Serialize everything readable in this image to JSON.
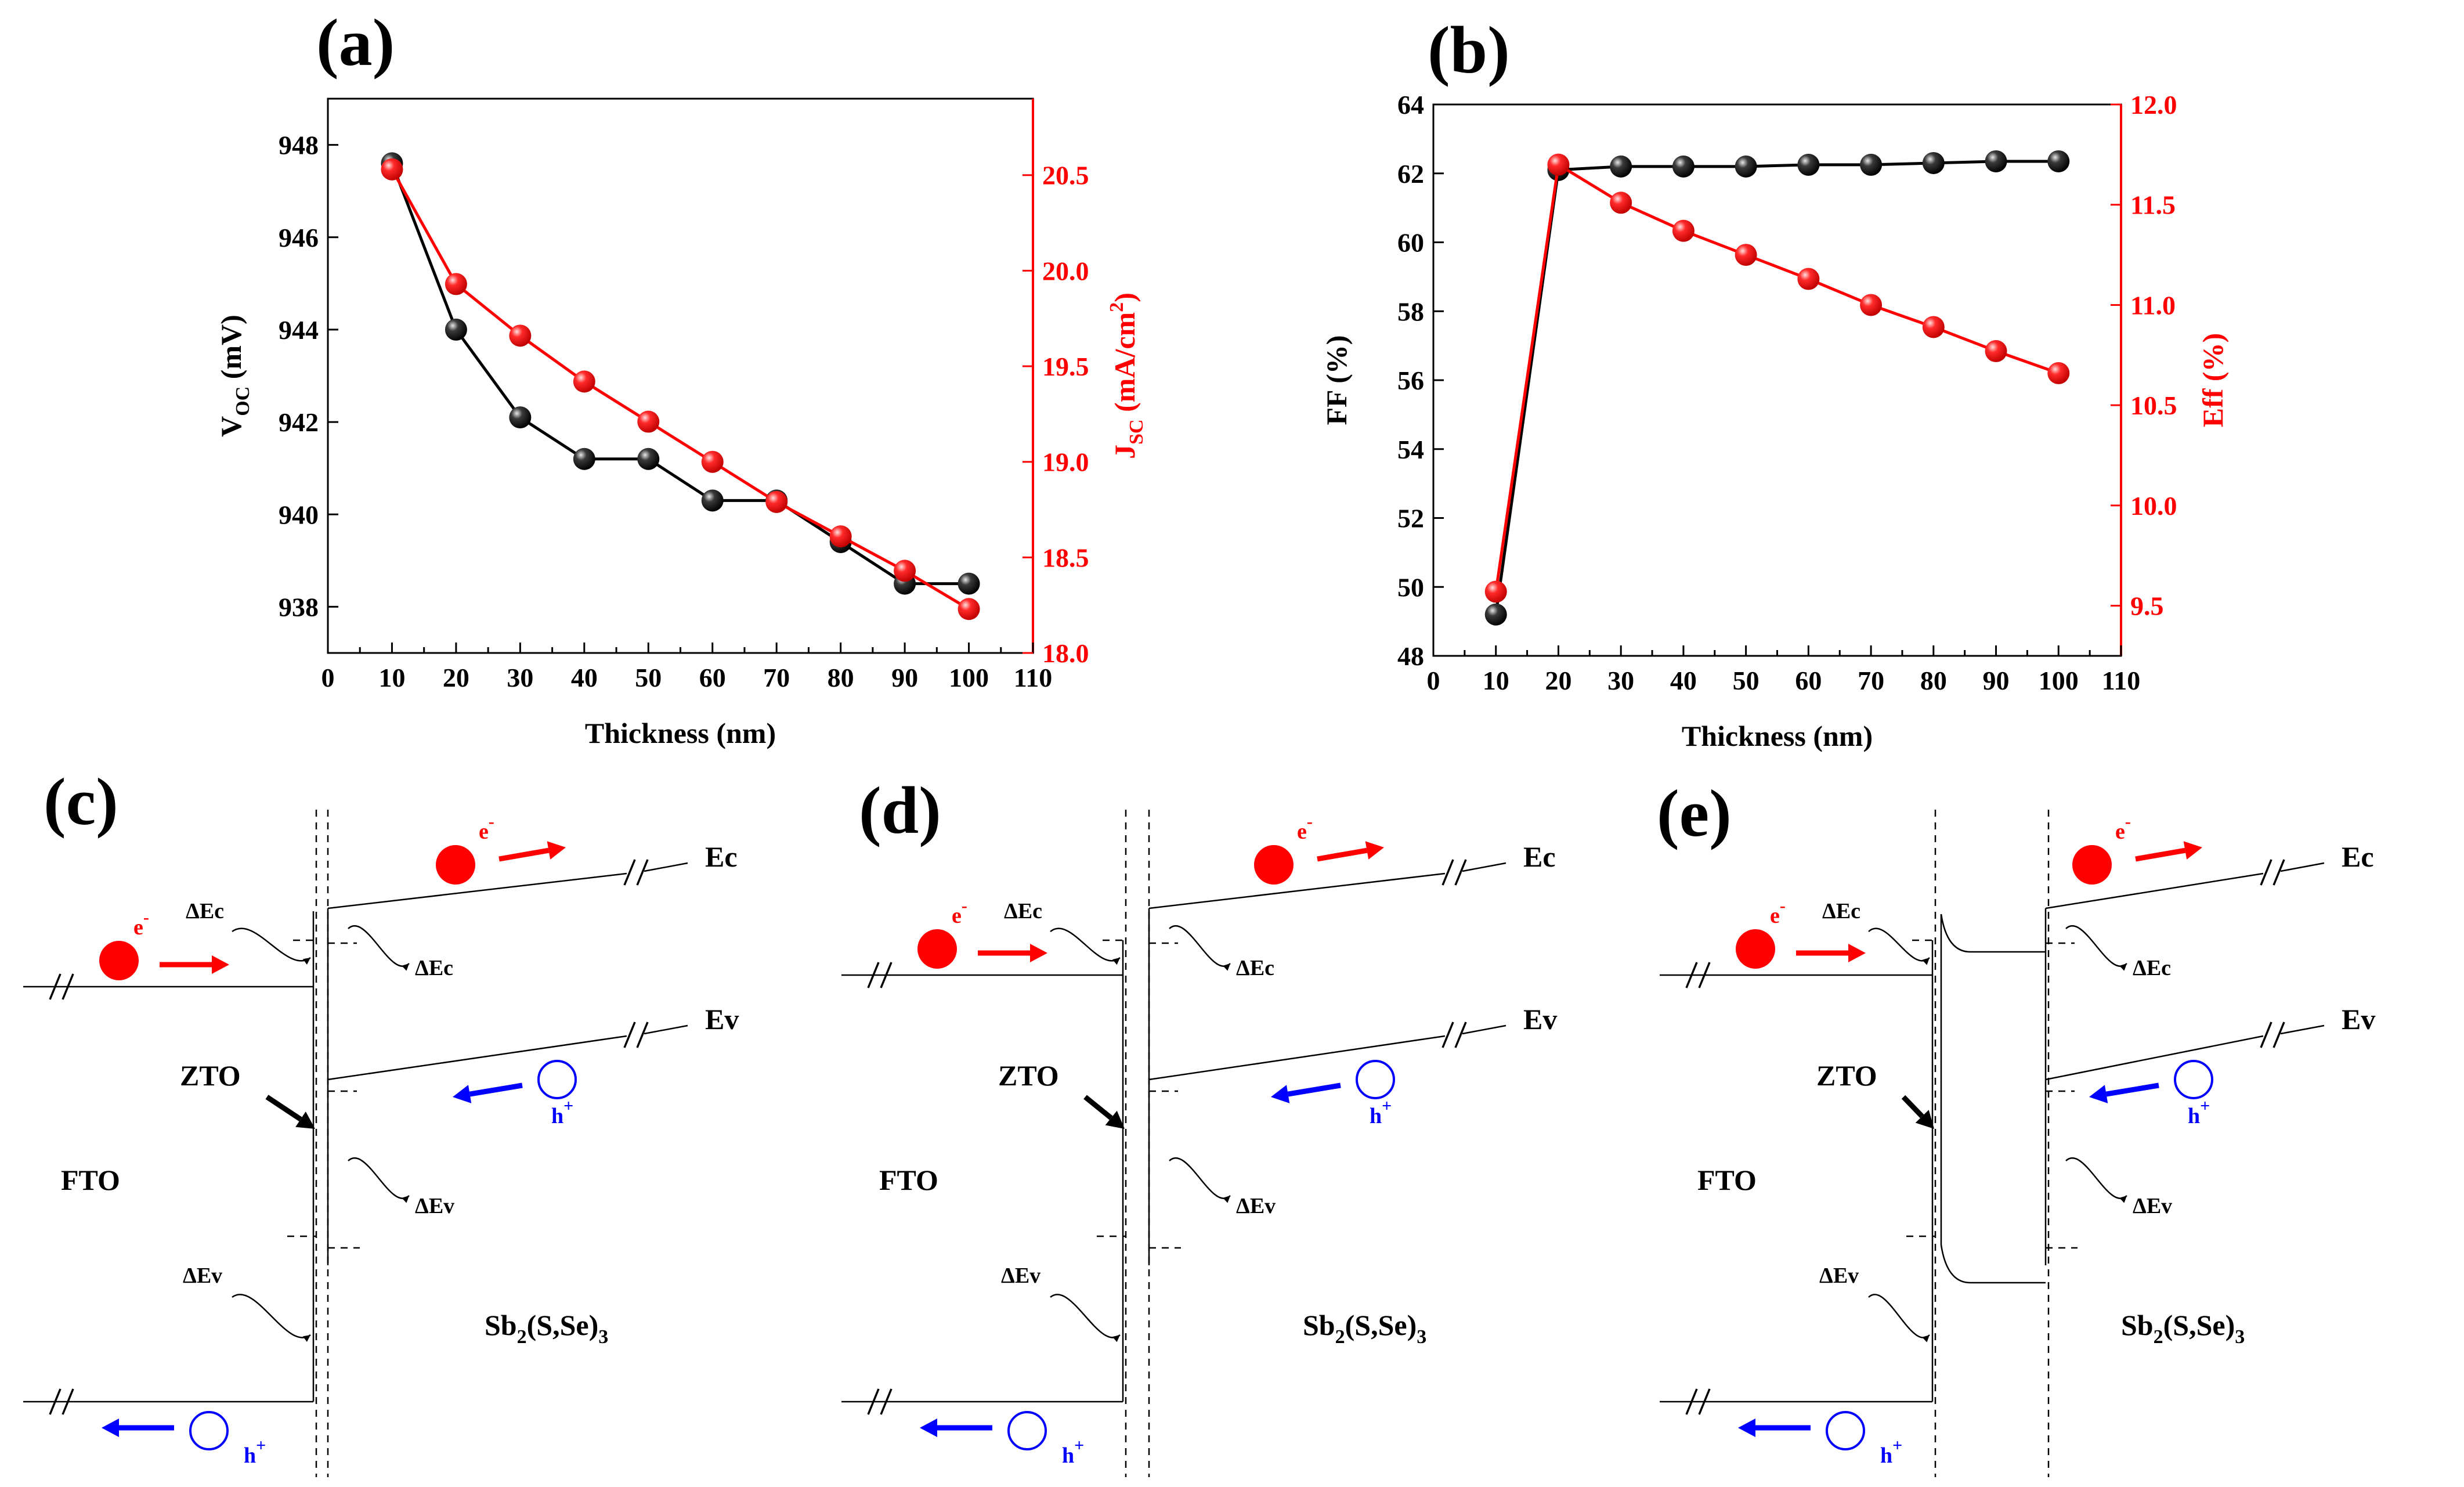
{
  "colors": {
    "black_series": "#000000",
    "red_series": "#ff0000",
    "blue_carrier": "#0000ff"
  },
  "chart_data": [
    {
      "panel": "(a)",
      "type": "line",
      "xlabel": "Thickness (nm)",
      "x": [
        10,
        20,
        30,
        40,
        50,
        60,
        70,
        80,
        90,
        100
      ],
      "xlim": [
        0,
        110
      ],
      "xticks": [
        "0",
        "10",
        "20",
        "30",
        "40",
        "50",
        "60",
        "70",
        "80",
        "90",
        "100",
        "110"
      ],
      "series": [
        {
          "name": "Voc",
          "axis": "left",
          "color": "#000000",
          "values": [
            947.6,
            944.0,
            942.1,
            941.2,
            941.2,
            940.3,
            940.3,
            939.4,
            938.5,
            938.5
          ]
        },
        {
          "name": "Jsc",
          "axis": "right",
          "color": "#ff0000",
          "values": [
            20.53,
            19.93,
            19.66,
            19.42,
            19.21,
            19.0,
            18.79,
            18.61,
            18.43,
            18.23
          ]
        }
      ],
      "ylabel_left": {
        "main": "V",
        "sub": "OC",
        "rest": " (mV)"
      },
      "ylim_left": [
        937,
        949
      ],
      "yticks_left": [
        "938",
        "940",
        "942",
        "944",
        "946",
        "948"
      ],
      "ylabel_right": {
        "main": "J",
        "sub": "SC",
        "rest": " (mA/cm",
        "sup": "2",
        "end": ")"
      },
      "ylim_right": [
        18.0,
        20.9
      ],
      "yticks_right": [
        "18.0",
        "18.5",
        "19.0",
        "19.5",
        "20.0",
        "20.5"
      ]
    },
    {
      "panel": "(b)",
      "type": "line",
      "xlabel": "Thickness (nm)",
      "x": [
        10,
        20,
        30,
        40,
        50,
        60,
        70,
        80,
        90,
        100
      ],
      "xlim": [
        0,
        110
      ],
      "xticks": [
        "0",
        "10",
        "20",
        "30",
        "40",
        "50",
        "60",
        "70",
        "80",
        "90",
        "100",
        "110"
      ],
      "series": [
        {
          "name": "FF",
          "axis": "left",
          "color": "#000000",
          "values": [
            49.2,
            62.1,
            62.2,
            62.2,
            62.2,
            62.25,
            62.25,
            62.3,
            62.35,
            62.35
          ]
        },
        {
          "name": "Eff",
          "axis": "right",
          "color": "#ff0000",
          "values": [
            9.57,
            11.7,
            11.51,
            11.37,
            11.25,
            11.13,
            11.0,
            10.89,
            10.77,
            10.66
          ]
        }
      ],
      "ylabel_left": "FF (%)",
      "ylim_left": [
        48,
        64
      ],
      "yticks_left": [
        "48",
        "50",
        "52",
        "54",
        "56",
        "58",
        "60",
        "62",
        "64"
      ],
      "ylabel_right": "Eff (%)",
      "ylim_right": [
        9.25,
        12.0
      ],
      "yticks_right": [
        "9.5",
        "10.0",
        "10.5",
        "11.0",
        "11.5",
        "12.0"
      ]
    }
  ],
  "band_diagrams": [
    {
      "panel": "(c)",
      "fto": "FTO",
      "zto": "ZTO",
      "absorber": {
        "main": "Sb",
        "sub1": "2",
        "mid": "(S,Se)",
        "sub2": "3"
      },
      "ec": "Ec",
      "ev": "Ev",
      "dEc_left": "ΔEc",
      "dEc_right": "ΔEc",
      "dEv_left": "ΔEv",
      "dEv_right": "ΔEv",
      "electron": {
        "main": "e",
        "sup": "-"
      },
      "hole": {
        "main": "h",
        "sup": "+"
      }
    },
    {
      "panel": "(d)",
      "fto": "FTO",
      "zto": "ZTO",
      "absorber": {
        "main": "Sb",
        "sub1": "2",
        "mid": "(S,Se)",
        "sub2": "3"
      },
      "ec": "Ec",
      "ev": "Ev",
      "dEc_left": "ΔEc",
      "dEc_right": "ΔEc",
      "dEv_left": "ΔEv",
      "dEv_right": "ΔEv",
      "electron": {
        "main": "e",
        "sup": "-"
      },
      "hole": {
        "main": "h",
        "sup": "+"
      }
    },
    {
      "panel": "(e)",
      "fto": "FTO",
      "zto": "ZTO",
      "absorber": {
        "main": "Sb",
        "sub1": "2",
        "mid": "(S,Se)",
        "sub2": "3"
      },
      "ec": "Ec",
      "ev": "Ev",
      "dEc_left": "ΔEc",
      "dEc_right": "ΔEc",
      "dEv_left": "ΔEv",
      "dEv_right": "ΔEv",
      "electron": {
        "main": "e",
        "sup": "-"
      },
      "hole": {
        "main": "h",
        "sup": "+"
      }
    }
  ]
}
